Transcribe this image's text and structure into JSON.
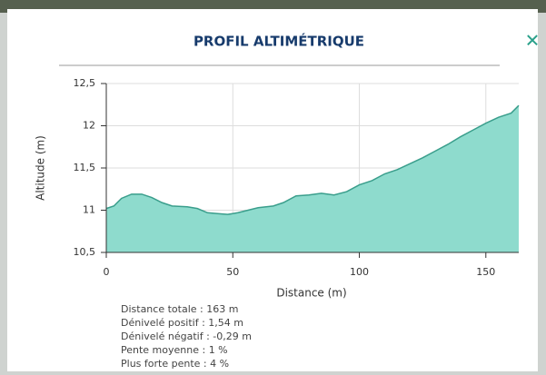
{
  "header": {
    "title": "PROFIL ALTIMÉTRIQUE",
    "close": "✕"
  },
  "chart_data": {
    "type": "area",
    "xlabel": "Distance (m)",
    "ylabel": "Altitude (m)",
    "x": [
      0,
      3,
      6,
      10,
      14,
      18,
      22,
      26,
      32,
      36,
      40,
      44,
      48,
      52,
      56,
      60,
      66,
      70,
      75,
      80,
      85,
      90,
      95,
      100,
      105,
      110,
      115,
      120,
      125,
      130,
      135,
      140,
      145,
      150,
      155,
      160,
      163
    ],
    "values": [
      11.02,
      11.05,
      11.14,
      11.19,
      11.19,
      11.15,
      11.09,
      11.05,
      11.04,
      11.02,
      10.97,
      10.96,
      10.95,
      10.97,
      11.0,
      11.03,
      11.05,
      11.09,
      11.17,
      11.18,
      11.2,
      11.18,
      11.22,
      11.3,
      11.35,
      11.43,
      11.48,
      11.55,
      11.62,
      11.7,
      11.78,
      11.87,
      11.95,
      12.03,
      12.1,
      12.15,
      12.24
    ],
    "color": "#8edbcd",
    "line_color": "#3a9e8c",
    "xlim": [
      0,
      163
    ],
    "ylim": [
      10.5,
      12.5
    ],
    "xticks": [
      0,
      50,
      100,
      150
    ],
    "yticks": [
      {
        "value": 10.5,
        "label": "10,5"
      },
      {
        "value": 11,
        "label": "11"
      },
      {
        "value": 11.5,
        "label": "11,5"
      },
      {
        "value": 12,
        "label": "12"
      },
      {
        "value": 12.5,
        "label": "12,5"
      }
    ],
    "grid": true
  },
  "stats": [
    "Distance totale : 163 m",
    "Dénivelé positif : 1,54 m",
    "Dénivelé négatif : -0,29 m",
    "Pente moyenne : 1 %",
    "Plus forte pente : 4 %"
  ]
}
